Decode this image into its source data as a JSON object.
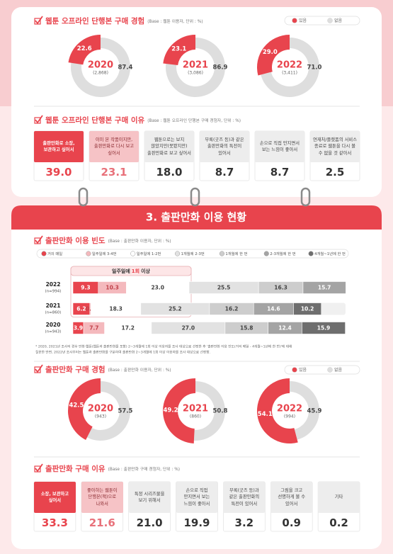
{
  "header": {
    "section_title": "3. 출판만화 이용 현황"
  },
  "chart_data": [
    {
      "type": "donut",
      "title": "웹툰 오프라인 단행본 구매 경험",
      "subtitle": "(Base : 웹툰 이용자, 단위 : %)",
      "categories": [
        "2020",
        "2021",
        "2022"
      ],
      "sample_labels": [
        "(2,868)",
        "(3,086)",
        "(3,411)"
      ],
      "series": [
        {
          "name": "있음",
          "color": "#e8444d",
          "values": [
            22.6,
            23.1,
            29.0
          ],
          "value_labels": [
            "22.6",
            "23.1",
            "29.0"
          ]
        },
        {
          "name": "없음",
          "color": "#dedede",
          "values": [
            87.4,
            86.9,
            71.0
          ],
          "value_labels": [
            "87.4",
            "86.9",
            "71.0"
          ]
        }
      ]
    },
    {
      "type": "cards",
      "title": "웹툰 오프라인 단행본 구매 이유",
      "subtitle": "(Base : 웹툰 오프라인 단행본 구매 경험자, 단위 : %)",
      "categories": [
        "출판만화로 소장, 보관하고 싶어서",
        "이미 본 작품이지만, 출판만화로 다시 보고 싶어서",
        "웹툰으로는 보지 않았지만(못봤지만) 출판만화로 보고 싶어서",
        "부록(굿즈 등)과 같은 출판만화의 특전이 있어서",
        "손으로 직접 만지면서 보는 느낌이 좋아서",
        "연재처/플랫폼의 서비스 종료로 웹툰을 다시 볼 수 없을 것 같아서"
      ],
      "values": [
        39.0,
        23.1,
        18.0,
        8.7,
        8.7,
        2.5
      ],
      "value_labels": [
        "39.0",
        "23.1",
        "18.0",
        "8.7",
        "8.7",
        "2.5"
      ],
      "colors": [
        "#e8444d",
        "#f6c3c6",
        "#ededed",
        "#ededed",
        "#ededed",
        "#ededed"
      ]
    },
    {
      "type": "stacked_bar",
      "title": "출판만화 이용 빈도",
      "subtitle": "(Base : 출판만화 이용자, 단위 : %)",
      "categories": [
        "2022",
        "2021",
        "2020"
      ],
      "sample_labels": [
        "(n=994)",
        "(n=860)",
        "(n=943)"
      ],
      "annotation": [
        "일주일에",
        "1회",
        "이상"
      ],
      "xlim": [
        0,
        100
      ],
      "series": [
        {
          "name": "거의 매일",
          "color": "#e8444d",
          "values": [
            9.3,
            6.2,
            3.9
          ],
          "value_labels": [
            "9.3",
            "6.2",
            "3.9"
          ]
        },
        {
          "name": "일주일에 3-4번",
          "color": "#f4b9bd",
          "values": [
            10.3,
            0.4,
            7.7
          ],
          "value_labels": [
            "10.3",
            "0.4",
            "7.7"
          ]
        },
        {
          "name": "일주일에 1-2번",
          "color": "#ffffff",
          "values": [
            23.0,
            18.3,
            17.2
          ],
          "value_labels": [
            "23.0",
            "18.3",
            "17.2"
          ]
        },
        {
          "name": "1개월에 2-3번",
          "color": "#e2e2e2",
          "values": [
            25.5,
            25.2,
            27.0
          ],
          "value_labels": [
            "25.5",
            "25.2",
            "27.0"
          ]
        },
        {
          "name": "1개월에 한 번",
          "color": "#cdcdcd",
          "values": [
            16.3,
            16.2,
            15.8
          ],
          "value_labels": [
            "16.3",
            "16.2",
            "15.8"
          ]
        },
        {
          "name": "2-3개월에 한 번",
          "color": "#a4a4a4",
          "values": [
            15.7,
            14.6,
            12.4
          ],
          "value_labels": [
            "15.7",
            "14.6",
            "12.4"
          ]
        },
        {
          "name": "4개월~1년에 한 번",
          "color": "#6e6e6e",
          "values": [
            null,
            10.2,
            15.9
          ],
          "value_labels": [
            null,
            "10.2",
            "15.9"
          ]
        }
      ],
      "notes": [
        "* 2020, 2021년 조사의 경우 만화·웹툰(웹툰과 출판만화를 포함) 2~3개월에 1회 이상 이용자를 조사 대상으로 선정한 후 '출판만화 이용 빈도(거의 매일 - 4개월~1년에 한 번)'에 대해",
        "질문한 반면, 2022년 조사부터는 웹툰과 출판만화를 구분하여 출판만화 2~3개월에 1회 이상 이용자를 조사 대상으로 선정함."
      ]
    },
    {
      "type": "donut",
      "title": "출판만화 구매 경험",
      "subtitle": "(Base : 출판만화 이용자, 단위 : %)",
      "categories": [
        "2020",
        "2021",
        "2022"
      ],
      "sample_labels": [
        "(943)",
        "(860)",
        "(994)"
      ],
      "series": [
        {
          "name": "있음",
          "color": "#e8444d",
          "values": [
            42.5,
            49.2,
            54.1
          ],
          "value_labels": [
            "42.5",
            "49.2",
            "54.1"
          ]
        },
        {
          "name": "없음",
          "color": "#dedede",
          "values": [
            57.5,
            50.8,
            45.9
          ],
          "value_labels": [
            "57.5",
            "50.8",
            "45.9"
          ]
        }
      ]
    },
    {
      "type": "cards",
      "title": "출판만화 구매 이유",
      "subtitle": "(Base : 출판만화 구매 경험자, 단위 : %)",
      "categories": [
        "소장, 보관하고 싶어서",
        "좋아하는 웹툰이 단행본(책)으로 나와서",
        "특정 시리즈물을 보기 위해서",
        "손으로 직접 만지면서 보는 느낌이 좋아서",
        "부록(굿즈 등)과 같은 출판만화의 특전이 있어서",
        "그림을 크고 선명하게 볼 수 있어서",
        "기타"
      ],
      "values": [
        33.3,
        21.6,
        21.0,
        19.9,
        3.2,
        0.9,
        0.2
      ],
      "value_labels": [
        "33.3",
        "21.6",
        "21.0",
        "19.9",
        "3.2",
        "0.9",
        "0.2"
      ],
      "colors": [
        "#e8444d",
        "#f6c3c6",
        "#ededed",
        "#ededed",
        "#ededed",
        "#ededed",
        "#ededed"
      ]
    }
  ]
}
